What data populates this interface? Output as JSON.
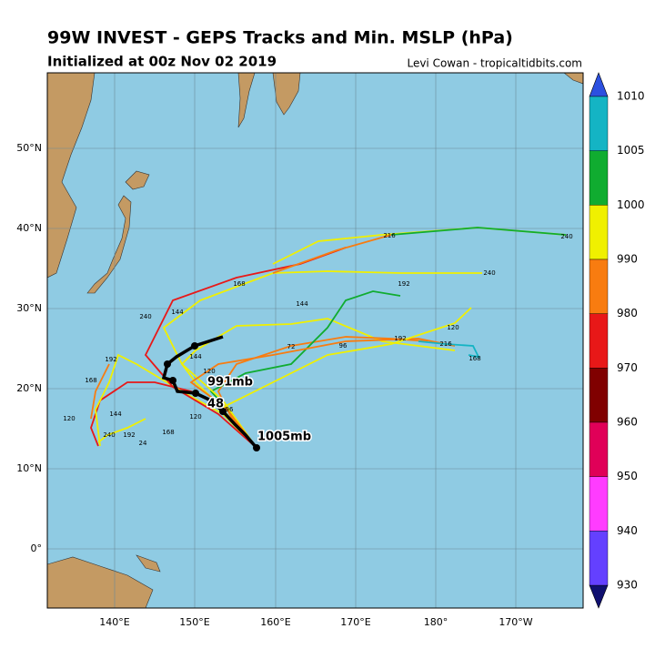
{
  "header": {
    "title": "99W INVEST - GEPS Tracks and Min. MSLP (hPa)",
    "subtitle": "Initialized at 00z Nov 02 2019",
    "credit": "Levi Cowan - tropicaltidbits.com"
  },
  "map": {
    "lat_labels": [
      "50°N",
      "40°N",
      "30°N",
      "20°N",
      "10°N",
      "0°"
    ],
    "lon_labels": [
      "140°E",
      "150°E",
      "160°E",
      "170°E",
      "180°",
      "170°W"
    ],
    "track_labels": [
      "991mb",
      "48",
      "1005mb",
      "240",
      "216",
      "240",
      "192",
      "168",
      "144",
      "120",
      "96",
      "72",
      "240",
      "192",
      "168",
      "144",
      "120",
      "216",
      "168",
      "192",
      "144",
      "120",
      "96",
      "24",
      "240",
      "192",
      "168",
      "144",
      "120"
    ]
  },
  "colorbar": {
    "levels": [
      1010,
      1005,
      1000,
      990,
      980,
      970,
      960,
      950,
      940,
      930
    ],
    "colors": [
      "#14b4c4",
      "#10ac30",
      "#f0f000",
      "#f87c10",
      "#e81818",
      "#800000",
      "#e00058",
      "#ff3cff",
      "#6440ff"
    ]
  }
}
